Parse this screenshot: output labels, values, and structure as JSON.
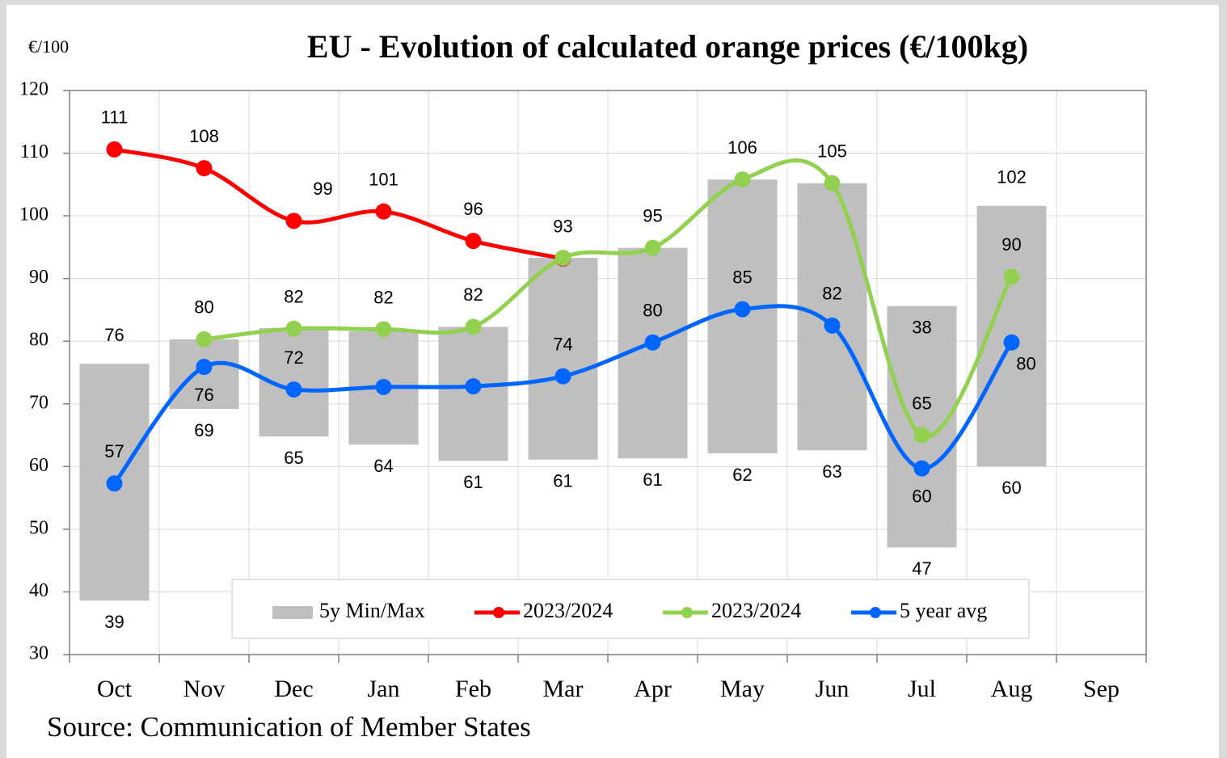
{
  "chart_data": {
    "type": "line",
    "title": "EU  -  Evolution of calculated orange prices (€/100kg)",
    "y_label": "€/100",
    "source": "Source: Communication of Member States",
    "categories": [
      "Oct",
      "Nov",
      "Dec",
      "Jan",
      "Feb",
      "Mar",
      "Apr",
      "May",
      "Jun",
      "Jul",
      "Aug",
      "Sep"
    ],
    "ylim": [
      30,
      120
    ],
    "yticks": [
      30,
      40,
      50,
      60,
      70,
      80,
      90,
      100,
      110,
      120
    ],
    "grid": true,
    "range": {
      "name": "5y Min/Max",
      "color": "#bfbfbf",
      "min": [
        38.6,
        69.2,
        64.8,
        63.5,
        60.9,
        61.1,
        61.3,
        62.1,
        62.6,
        47.1,
        60.0,
        null
      ],
      "max": [
        76.4,
        80.3,
        82.1,
        81.6,
        82.3,
        93.3,
        94.9,
        105.8,
        105.2,
        85.6,
        101.6,
        null
      ],
      "min_labels": [
        "39",
        "69",
        "65",
        "64",
        "61",
        "61",
        "61",
        "62",
        "63",
        "47",
        "60",
        null
      ],
      "max_labels": [
        "76",
        null,
        null,
        null,
        null,
        null,
        null,
        null,
        null,
        null,
        "102",
        null
      ]
    },
    "annotations": [
      "38"
    ],
    "series": [
      {
        "name": "2023/2024",
        "color": "#ff0000",
        "values": [
          110.6,
          107.6,
          99.2,
          100.7,
          96.0,
          93.2,
          null,
          null,
          null,
          null,
          null,
          null
        ],
        "value_labels": [
          "111",
          "108",
          "99",
          "101",
          "96",
          "93",
          null,
          null,
          null,
          null,
          null,
          null
        ]
      },
      {
        "name": "2023/2024",
        "color": "#92d050",
        "values": [
          null,
          80.3,
          82.0,
          81.9,
          82.3,
          93.3,
          94.9,
          105.8,
          105.2,
          65.0,
          90.3,
          null
        ],
        "value_labels": [
          null,
          "80",
          "82",
          "82",
          "82",
          null,
          "95",
          "106",
          "105",
          "65",
          "90",
          null
        ]
      },
      {
        "name": "5 year avg",
        "color": "#0066ff",
        "values": [
          57.3,
          75.9,
          72.3,
          72.7,
          72.8,
          74.4,
          79.8,
          85.1,
          82.5,
          59.7,
          79.8,
          null
        ],
        "value_labels": [
          "57",
          "76",
          "72",
          null,
          null,
          "74",
          "80",
          "85",
          "82",
          "60",
          "80",
          null
        ]
      }
    ]
  }
}
